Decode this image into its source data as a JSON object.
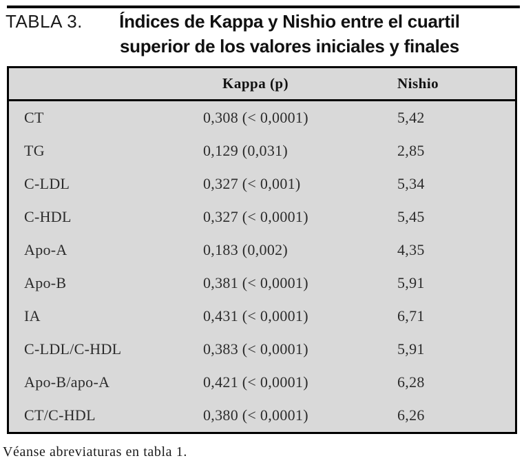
{
  "header": {
    "label": "TABLA 3.",
    "title_line1": "Índices de Kappa y Nishio entre el cuartil",
    "title_line2": "superior de los valores iniciales y finales"
  },
  "table": {
    "columns": {
      "kappa": "Kappa (p)",
      "nishio": "Nishio"
    },
    "rows": [
      {
        "param": "CT",
        "kappa": "0,308 (< 0,0001)",
        "nishio": "5,42"
      },
      {
        "param": "TG",
        "kappa": "0,129 (0,031)",
        "nishio": "2,85"
      },
      {
        "param": "C-LDL",
        "kappa": "0,327 (< 0,001)",
        "nishio": "5,34"
      },
      {
        "param": "C-HDL",
        "kappa": "0,327 (< 0,0001)",
        "nishio": "5,45"
      },
      {
        "param": "Apo-A",
        "kappa": "0,183 (0,002)",
        "nishio": "4,35"
      },
      {
        "param": "Apo-B",
        "kappa": "0,381 (< 0,0001)",
        "nishio": "5,91"
      },
      {
        "param": "IA",
        "kappa": "0,431 (< 0,0001)",
        "nishio": "6,71"
      },
      {
        "param": "C-LDL/C-HDL",
        "kappa": "0,383 (< 0,0001)",
        "nishio": "5,91"
      },
      {
        "param": "Apo-B/apo-A",
        "kappa": "0,421 (< 0,0001)",
        "nishio": "6,28"
      },
      {
        "param": "CT/C-HDL",
        "kappa": "0,380 (< 0,0001)",
        "nishio": "6,26"
      }
    ]
  },
  "footnote": "Véanse abreviaturas en tabla 1.",
  "colors": {
    "table_background": "#d9d9d9",
    "rule": "#000000",
    "text": "#1a1a1a"
  }
}
